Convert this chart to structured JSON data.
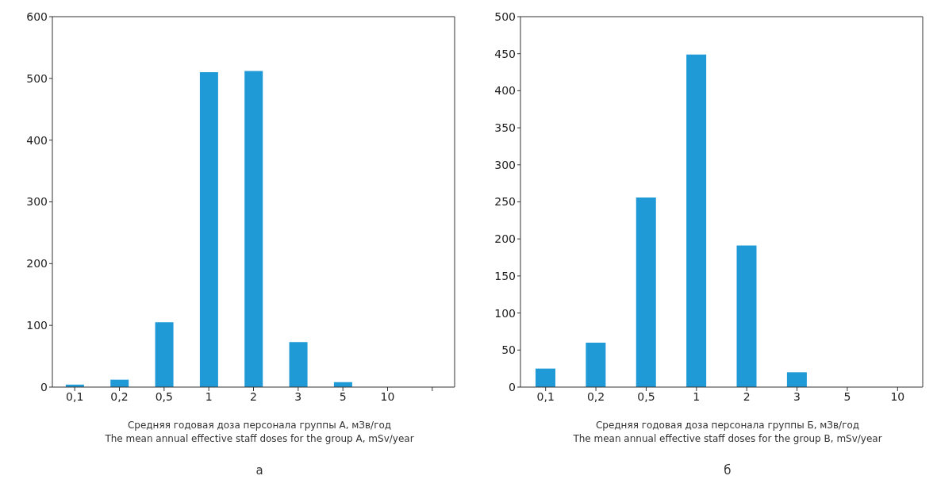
{
  "chart_data": [
    {
      "type": "bar",
      "categories": [
        "0,1",
        "0,2",
        "0,5",
        "1",
        "2",
        "3",
        "5",
        "10",
        null
      ],
      "values": [
        4,
        12,
        105,
        510,
        512,
        73,
        8,
        null,
        null
      ],
      "color": "#1f9ad6",
      "ylim": [
        0,
        600
      ],
      "yticks": [
        0,
        100,
        200,
        300,
        400,
        500,
        600
      ],
      "grid": false,
      "legend": false,
      "xlabel": "Средняя годовая доза персонала группы А, мЗв/год\nThe mean annual effective staff doses for the group A, mSv/year",
      "annotations": [
        "а"
      ]
    },
    {
      "type": "bar",
      "categories": [
        "0,1",
        "0,2",
        "0,5",
        "1",
        "2",
        "3",
        "5",
        "10"
      ],
      "values": [
        25,
        60,
        256,
        449,
        191,
        20,
        null,
        null
      ],
      "color": "#1f9ad6",
      "ylim": [
        0,
        500
      ],
      "yticks": [
        0,
        50,
        100,
        150,
        200,
        250,
        300,
        350,
        400,
        450,
        500
      ],
      "grid": false,
      "legend": false,
      "xlabel": "Средняя годовая доза персонала группы Б, мЗв/год\nThe mean annual effective staff doses for the group B, mSv/year",
      "annotations": [
        "б"
      ]
    }
  ]
}
